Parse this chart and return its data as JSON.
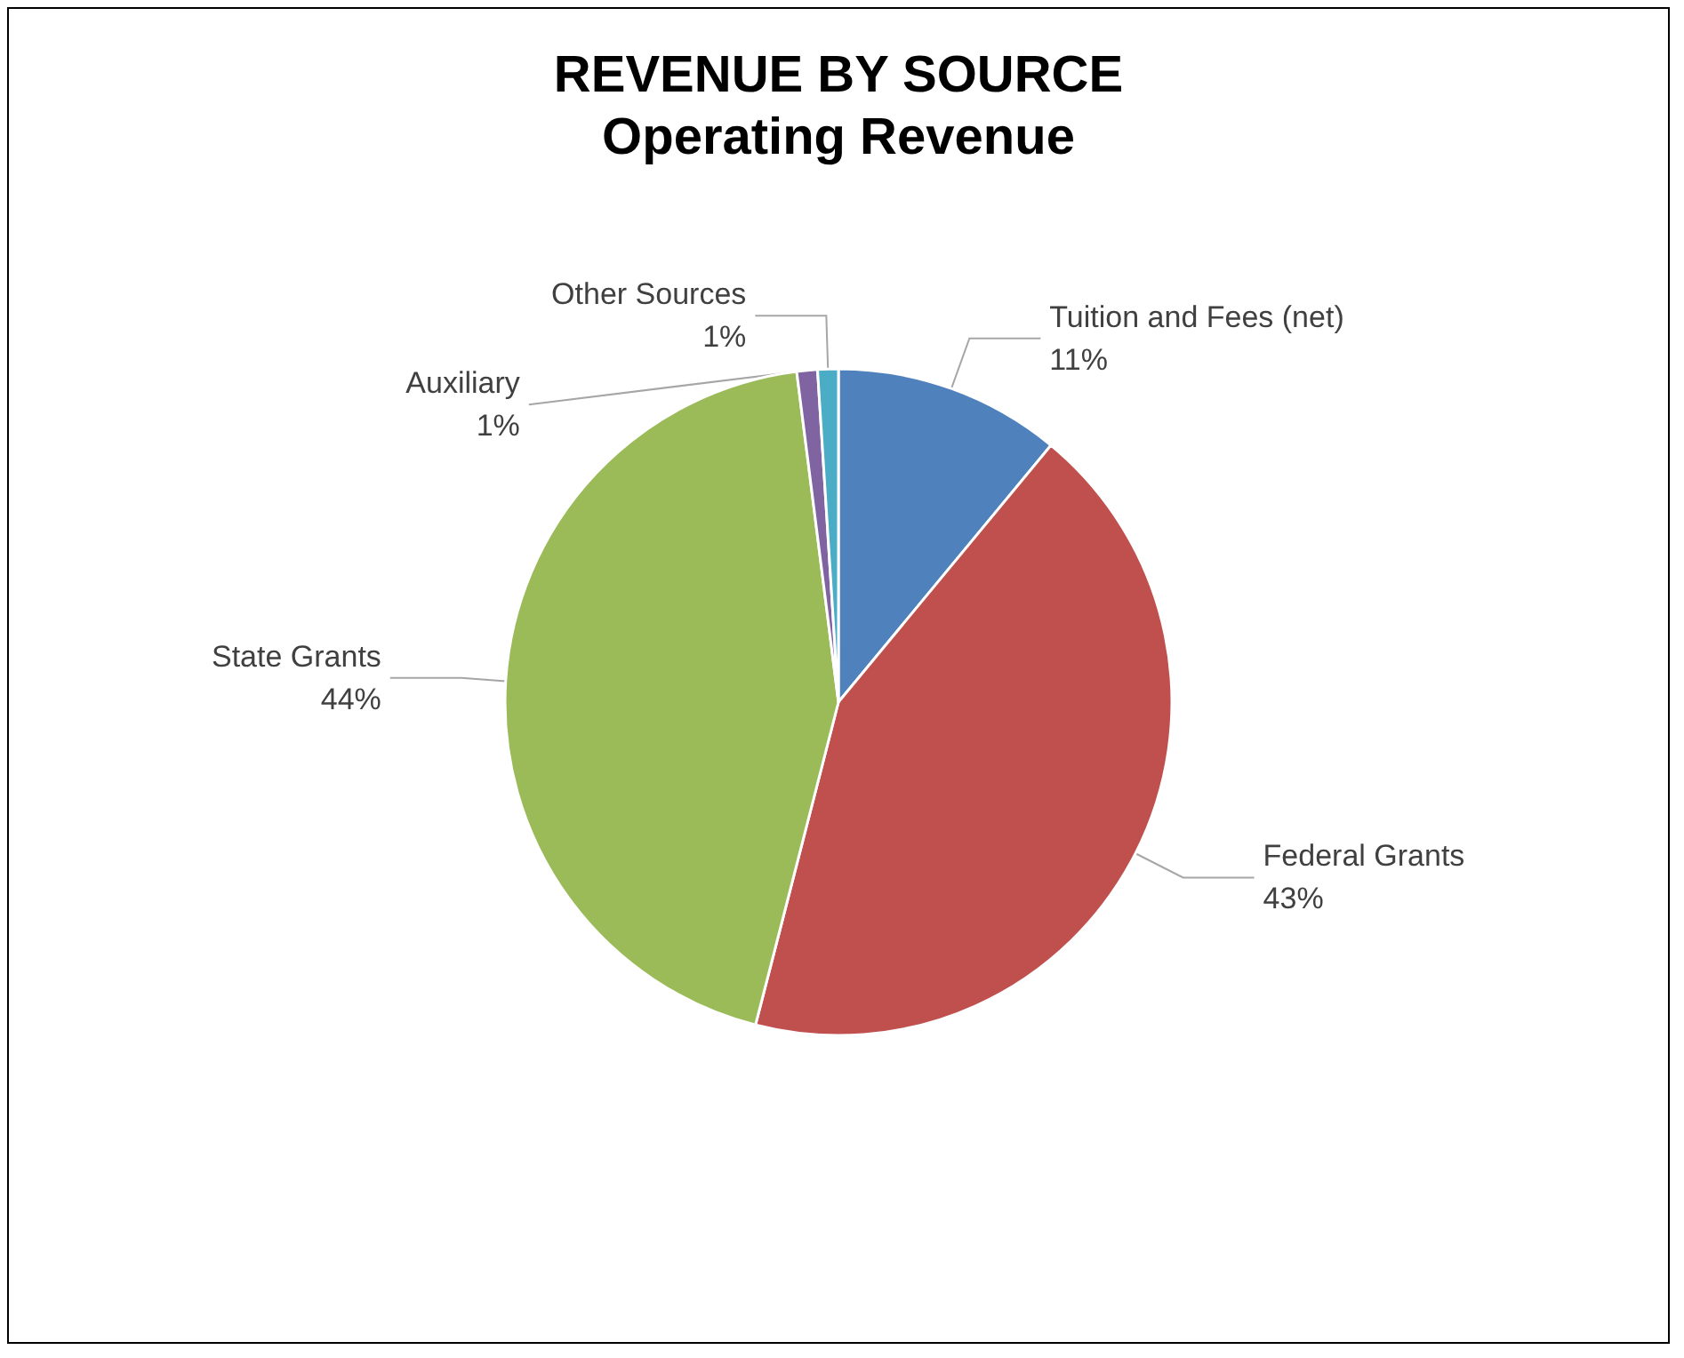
{
  "chart_data": {
    "type": "pie",
    "title": "REVENUE BY SOURCE",
    "subtitle": "Operating Revenue",
    "categories": [
      "Tuition and Fees (net)",
      "Federal Grants",
      "State Grants",
      "Auxiliary",
      "Other Sources"
    ],
    "values": [
      11,
      43,
      44,
      1,
      1
    ],
    "value_labels": [
      "11%",
      "43%",
      "44%",
      "1%",
      "1%"
    ],
    "colors": [
      "#4f81bd",
      "#c0504d",
      "#9bbb59",
      "#8064a2",
      "#4bacc6"
    ],
    "legend": false
  }
}
